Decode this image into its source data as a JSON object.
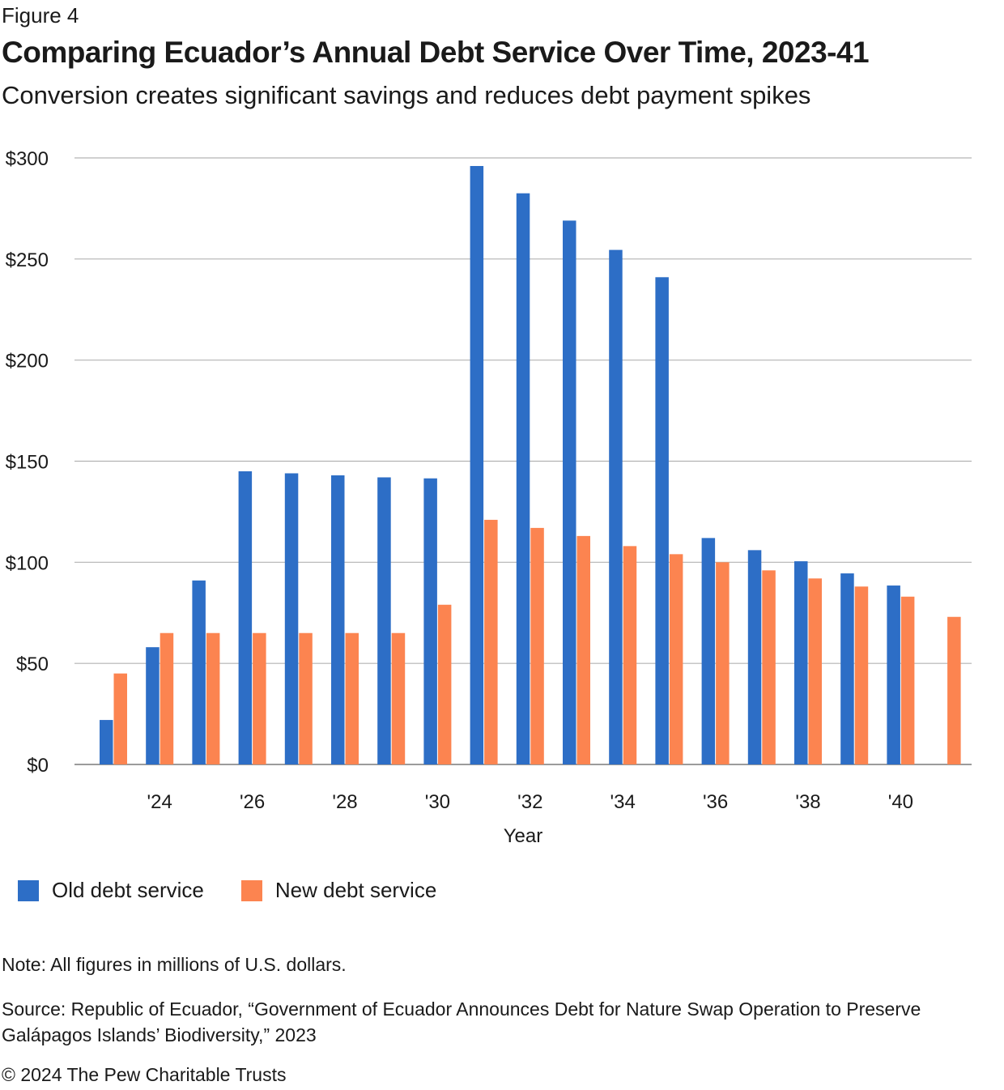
{
  "header": {
    "figure_label": "Figure 4",
    "title": "Comparing Ecuador’s Annual Debt Service Over Time, 2023-41",
    "subtitle": "Conversion creates significant savings and reduces debt payment spikes"
  },
  "chart_data": {
    "type": "bar",
    "title": "Comparing Ecuador’s Annual Debt Service Over Time, 2023-41",
    "subtitle": "Conversion creates significant savings and reduces debt payment spikes",
    "xlabel": "Year",
    "ylabel": "",
    "ylim": [
      0,
      300
    ],
    "yticks": [
      0,
      50,
      100,
      150,
      200,
      250,
      300
    ],
    "ytick_labels": [
      "$0",
      "$50",
      "$100",
      "$150",
      "$200",
      "$250",
      "$300"
    ],
    "categories": [
      2023,
      2024,
      2025,
      2026,
      2027,
      2028,
      2029,
      2030,
      2031,
      2032,
      2033,
      2034,
      2035,
      2036,
      2037,
      2038,
      2039,
      2040,
      2041
    ],
    "xtick_labels": {
      "2024": "'24",
      "2026": "'26",
      "2028": "'28",
      "2030": "'30",
      "2032": "'32",
      "2034": "'34",
      "2036": "'36",
      "2038": "'38",
      "2040": "'40"
    },
    "grid": true,
    "legend_position": "bottom-left",
    "series": [
      {
        "name": "Old debt service",
        "color": "#2d6ec6",
        "values": [
          22,
          58,
          91,
          145,
          144,
          143,
          142,
          141.5,
          296,
          282.5,
          269,
          254.5,
          241,
          112,
          106,
          100.5,
          94.5,
          88.5,
          null
        ]
      },
      {
        "name": "New debt service",
        "color": "#fc8450",
        "values": [
          45,
          65,
          65,
          65,
          65,
          65,
          65,
          79,
          121,
          117,
          113,
          108,
          104,
          100,
          96,
          92,
          88,
          83,
          73
        ]
      }
    ]
  },
  "footer": {
    "note": "Note: All figures in millions of U.S. dollars.",
    "source": "Source: Republic of Ecuador, “Government of Ecuador Announces Debt for Nature Swap Operation to Preserve Galápagos Islands’ Biodiversity,” 2023",
    "copyright": "© 2024 The Pew Charitable Trusts"
  }
}
